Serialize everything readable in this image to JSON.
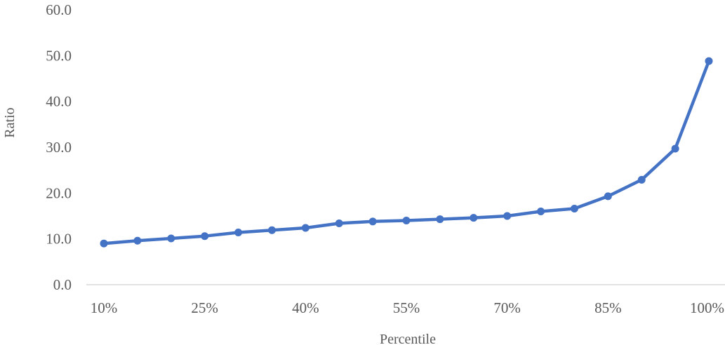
{
  "chart_data": {
    "type": "line",
    "title": "",
    "xlabel": "Percentile",
    "ylabel": "Ratio",
    "ylim": [
      0,
      60
    ],
    "yticks": [
      "0.0",
      "10.0",
      "20.0",
      "30.0",
      "40.0",
      "50.0",
      "60.0"
    ],
    "xtick_labels": [
      "10%",
      "25%",
      "40%",
      "55%",
      "70%",
      "85%",
      "100%"
    ],
    "x": [
      "10%",
      "15%",
      "20%",
      "25%",
      "30%",
      "35%",
      "40%",
      "45%",
      "50%",
      "55%",
      "60%",
      "65%",
      "70%",
      "75%",
      "80%",
      "85%",
      "90%",
      "95%",
      "100%"
    ],
    "series": [
      {
        "values": [
          9.0,
          9.6,
          10.1,
          10.6,
          11.4,
          11.9,
          12.4,
          13.4,
          13.8,
          14.0,
          14.3,
          14.6,
          15.0,
          16.0,
          16.6,
          19.3,
          22.9,
          29.7,
          48.8
        ]
      }
    ],
    "grid": false,
    "legend": "none",
    "colors": {
      "line": "#4472C4",
      "axis": "#D9D9D9",
      "text": "#595959"
    }
  }
}
